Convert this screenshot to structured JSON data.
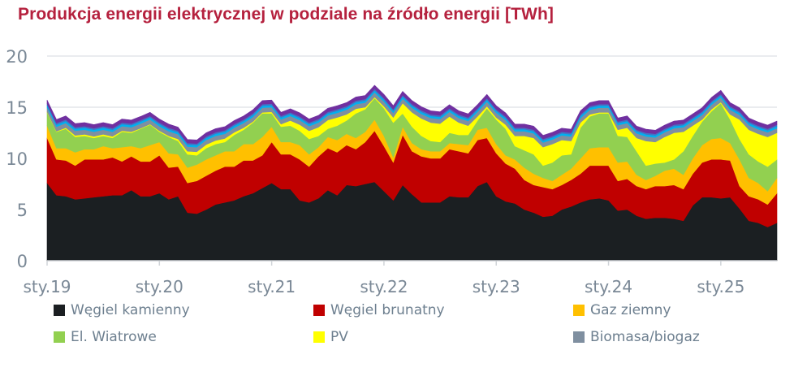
{
  "title": "Produkcja energii elektrycznej w podziale na źródło energii [TWh]",
  "chart_data": {
    "type": "area",
    "stacked": true,
    "title": "Produkcja energii elektrycznej w podziale na źródło energii [TWh]",
    "x_start": "2019-01",
    "x_end": "2025-07",
    "frequency": "monthly",
    "x_tick_labels": [
      "sty.19",
      "sty.20",
      "sty.21",
      "sty.22",
      "sty.23",
      "sty.24",
      "sty.25"
    ],
    "y_tick_labels": [
      "0",
      "5",
      "10",
      "15",
      "20"
    ],
    "ylim": [
      0,
      20
    ],
    "grid": "horizontal",
    "legend_position": "bottom",
    "series": [
      {
        "name": "Węgiel kamienny",
        "color": "#1b1f22",
        "values": [
          7.6,
          6.4,
          6.3,
          6.0,
          6.1,
          6.2,
          6.3,
          6.4,
          6.4,
          6.9,
          6.3,
          6.3,
          6.6,
          6.0,
          6.3,
          4.7,
          4.6,
          5.0,
          5.5,
          5.7,
          5.9,
          6.3,
          6.6,
          7.1,
          7.6,
          7.0,
          7.0,
          5.9,
          5.7,
          6.1,
          6.9,
          6.4,
          7.4,
          7.3,
          7.5,
          7.7,
          6.8,
          5.9,
          7.4,
          6.5,
          5.7,
          5.7,
          5.7,
          6.3,
          6.2,
          6.2,
          7.3,
          7.7,
          6.3,
          5.8,
          5.6,
          5.0,
          4.7,
          4.3,
          4.4,
          5.0,
          5.3,
          5.7,
          6.0,
          6.1,
          5.9,
          4.9,
          5.0,
          4.4,
          4.1,
          4.2,
          4.2,
          4.1,
          3.9,
          5.4,
          6.2,
          6.2,
          6.1,
          6.2,
          5.1,
          3.9,
          3.7,
          3.3,
          3.7
        ]
      },
      {
        "name": "Węgiel brunatny",
        "color": "#c00000",
        "values": [
          4.4,
          3.5,
          3.5,
          3.3,
          3.8,
          3.7,
          3.6,
          3.7,
          3.3,
          3.3,
          3.4,
          3.4,
          3.7,
          3.1,
          2.9,
          2.9,
          3.2,
          3.3,
          3.3,
          3.5,
          3.3,
          3.5,
          3.2,
          3.2,
          4.0,
          3.4,
          3.4,
          4.0,
          3.5,
          4.1,
          4.1,
          4.2,
          3.9,
          3.6,
          4.1,
          5.0,
          4.4,
          3.7,
          4.9,
          4.2,
          4.5,
          4.3,
          4.3,
          4.6,
          4.5,
          4.3,
          4.5,
          4.3,
          4.2,
          3.7,
          3.4,
          2.9,
          2.7,
          2.9,
          2.6,
          2.4,
          2.6,
          2.8,
          3.3,
          3.2,
          3.4,
          2.9,
          3.0,
          2.9,
          2.9,
          3.1,
          3.1,
          3.3,
          3.1,
          3.1,
          3.4,
          3.7,
          3.8,
          3.6,
          2.2,
          2.4,
          2.3,
          2.2,
          2.9
        ]
      },
      {
        "name": "Gaz ziemny",
        "color": "#ffc000",
        "values": [
          1.2,
          1.1,
          1.2,
          1.3,
          1.0,
          1.0,
          1.3,
          0.9,
          1.4,
          1.0,
          1.3,
          1.6,
          1.3,
          1.4,
          1.2,
          1.5,
          1.6,
          1.6,
          1.5,
          1.5,
          1.5,
          1.6,
          1.6,
          1.8,
          1.5,
          1.2,
          1.2,
          1.4,
          1.2,
          0.9,
          1.1,
          1.2,
          1.1,
          1.1,
          1.0,
          1.1,
          1.0,
          0.5,
          0.8,
          0.8,
          0.7,
          0.7,
          0.7,
          0.6,
          0.7,
          0.8,
          1.0,
          1.0,
          0.9,
          0.8,
          0.9,
          1.2,
          1.1,
          0.9,
          0.8,
          1.0,
          1.1,
          1.5,
          1.7,
          1.8,
          1.8,
          1.8,
          1.7,
          1.1,
          0.9,
          1.0,
          1.5,
          1.6,
          1.4,
          1.5,
          1.7,
          2.0,
          2.1,
          1.7,
          2.6,
          1.8,
          1.6,
          1.3,
          1.5
        ]
      },
      {
        "name": "El. Wiatrowe",
        "color": "#92d050",
        "values": [
          1.3,
          1.6,
          1.9,
          1.5,
          1.3,
          1.1,
          1.0,
          1.0,
          1.5,
          1.3,
          1.9,
          2.0,
          1.0,
          1.6,
          1.3,
          1.3,
          0.9,
          1.1,
          1.1,
          0.9,
          1.6,
          1.4,
          2.1,
          2.3,
          1.3,
          1.5,
          1.6,
          1.4,
          1.5,
          1.1,
          0.8,
          1.4,
          1.3,
          2.4,
          2.2,
          2.1,
          2.7,
          3.4,
          1.3,
          1.6,
          1.3,
          1.0,
          0.9,
          1.0,
          0.9,
          1.0,
          0.9,
          1.9,
          2.4,
          2.6,
          1.3,
          1.7,
          1.9,
          1.2,
          1.8,
          1.9,
          1.4,
          3.0,
          3.1,
          3.3,
          3.3,
          2.6,
          2.4,
          2.3,
          1.4,
          1.2,
          0.8,
          0.9,
          2.3,
          2.2,
          2.3,
          2.7,
          3.4,
          2.3,
          2.0,
          2.3,
          2.1,
          2.4,
          1.8
        ]
      },
      {
        "name": "PV",
        "color": "#ffff00",
        "values": [
          0.05,
          0.05,
          0.1,
          0.15,
          0.15,
          0.15,
          0.15,
          0.15,
          0.1,
          0.1,
          0.05,
          0.05,
          0.1,
          0.1,
          0.2,
          0.3,
          0.35,
          0.35,
          0.35,
          0.35,
          0.25,
          0.2,
          0.1,
          0.1,
          0.15,
          0.25,
          0.5,
          0.6,
          0.8,
          0.85,
          0.85,
          0.8,
          0.6,
          0.45,
          0.2,
          0.1,
          0.2,
          0.5,
          1.0,
          1.4,
          1.7,
          1.8,
          1.8,
          1.6,
          1.2,
          0.9,
          0.4,
          0.2,
          0.2,
          0.4,
          1.0,
          1.4,
          1.6,
          1.8,
          1.8,
          1.5,
          1.3,
          0.5,
          0.2,
          0.1,
          0.1,
          0.6,
          0.9,
          1.3,
          2.4,
          2.1,
          2.5,
          2.6,
          1.9,
          1.0,
          0.2,
          0.2,
          0.1,
          0.5,
          1.9,
          2.4,
          2.7,
          2.9,
          2.6
        ]
      },
      {
        "name": "Biomasa/biogaz",
        "color": "#7f8fa0",
        "values": [
          0.45,
          0.45,
          0.45,
          0.45,
          0.45,
          0.45,
          0.45,
          0.45,
          0.45,
          0.45,
          0.45,
          0.45,
          0.45,
          0.45,
          0.45,
          0.45,
          0.45,
          0.45,
          0.45,
          0.45,
          0.45,
          0.45,
          0.45,
          0.45,
          0.45,
          0.45,
          0.45,
          0.45,
          0.45,
          0.45,
          0.45,
          0.45,
          0.45,
          0.45,
          0.45,
          0.45,
          0.45,
          0.45,
          0.45,
          0.45,
          0.45,
          0.45,
          0.45,
          0.45,
          0.45,
          0.45,
          0.45,
          0.45,
          0.45,
          0.45,
          0.45,
          0.45,
          0.45,
          0.45,
          0.45,
          0.45,
          0.45,
          0.45,
          0.45,
          0.45,
          0.45,
          0.45,
          0.45,
          0.45,
          0.45,
          0.45,
          0.45,
          0.45,
          0.45,
          0.45,
          0.45,
          0.45,
          0.45,
          0.45,
          0.45,
          0.45,
          0.45,
          0.45,
          0.45
        ]
      },
      {
        "color": "#00b0f0",
        "values": [
          0.2,
          0.2,
          0.2,
          0.2,
          0.2,
          0.2,
          0.2,
          0.2,
          0.2,
          0.2,
          0.2,
          0.2,
          0.2,
          0.2,
          0.2,
          0.2,
          0.2,
          0.2,
          0.2,
          0.2,
          0.2,
          0.2,
          0.2,
          0.2,
          0.2,
          0.2,
          0.2,
          0.2,
          0.2,
          0.2,
          0.2,
          0.2,
          0.2,
          0.2,
          0.2,
          0.2,
          0.2,
          0.2,
          0.2,
          0.2,
          0.2,
          0.2,
          0.2,
          0.2,
          0.2,
          0.2,
          0.2,
          0.2,
          0.2,
          0.2,
          0.2,
          0.2,
          0.2,
          0.2,
          0.2,
          0.2,
          0.2,
          0.2,
          0.2,
          0.2,
          0.2,
          0.2,
          0.2,
          0.2,
          0.2,
          0.2,
          0.2,
          0.2,
          0.2,
          0.2,
          0.2,
          0.2,
          0.2,
          0.2,
          0.2,
          0.2,
          0.2,
          0.2,
          0.2
        ]
      },
      {
        "color": "#4472c4",
        "values": [
          0.15,
          0.15,
          0.15,
          0.15,
          0.15,
          0.15,
          0.15,
          0.15,
          0.15,
          0.15,
          0.15,
          0.15,
          0.15,
          0.15,
          0.15,
          0.15,
          0.15,
          0.15,
          0.15,
          0.15,
          0.15,
          0.15,
          0.15,
          0.15,
          0.15,
          0.15,
          0.15,
          0.15,
          0.15,
          0.15,
          0.15,
          0.15,
          0.15,
          0.15,
          0.15,
          0.15,
          0.15,
          0.15,
          0.15,
          0.15,
          0.15,
          0.15,
          0.15,
          0.15,
          0.15,
          0.15,
          0.15,
          0.15,
          0.15,
          0.15,
          0.15,
          0.15,
          0.15,
          0.15,
          0.15,
          0.15,
          0.15,
          0.15,
          0.15,
          0.15,
          0.15,
          0.15,
          0.15,
          0.15,
          0.15,
          0.15,
          0.15,
          0.15,
          0.15,
          0.15,
          0.15,
          0.15,
          0.15,
          0.15,
          0.15,
          0.15,
          0.15,
          0.15,
          0.15
        ]
      },
      {
        "color": "#7030a0",
        "values": [
          0.35,
          0.35,
          0.35,
          0.35,
          0.35,
          0.35,
          0.35,
          0.35,
          0.35,
          0.35,
          0.35,
          0.35,
          0.35,
          0.35,
          0.35,
          0.35,
          0.35,
          0.35,
          0.35,
          0.35,
          0.35,
          0.35,
          0.35,
          0.35,
          0.35,
          0.35,
          0.35,
          0.35,
          0.35,
          0.35,
          0.35,
          0.35,
          0.35,
          0.35,
          0.35,
          0.35,
          0.35,
          0.35,
          0.35,
          0.35,
          0.35,
          0.35,
          0.35,
          0.35,
          0.35,
          0.35,
          0.35,
          0.35,
          0.35,
          0.35,
          0.35,
          0.35,
          0.35,
          0.35,
          0.35,
          0.35,
          0.35,
          0.35,
          0.35,
          0.35,
          0.35,
          0.35,
          0.35,
          0.35,
          0.35,
          0.35,
          0.35,
          0.35,
          0.35,
          0.35,
          0.35,
          0.35,
          0.35,
          0.35,
          0.35,
          0.35,
          0.35,
          0.35,
          0.35
        ]
      }
    ]
  },
  "legend": [
    {
      "label": "Węgiel kamienny",
      "color": "#1b1f22"
    },
    {
      "label": "Węgiel brunatny",
      "color": "#c00000"
    },
    {
      "label": "Gaz ziemny",
      "color": "#ffc000"
    },
    {
      "label": "El. Wiatrowe",
      "color": "#92d050"
    },
    {
      "label": "PV",
      "color": "#ffff00"
    },
    {
      "label": "Biomasa/biogaz",
      "color": "#7f8fa0"
    }
  ]
}
